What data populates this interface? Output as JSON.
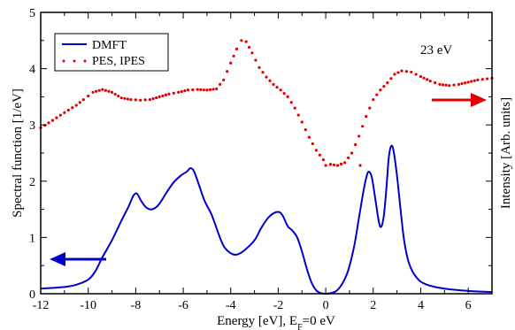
{
  "chart_data": {
    "type": "line",
    "xlabel_main": "Energy [eV], E",
    "xlabel_sub": "F",
    "xlabel_tail": "=0 eV",
    "ylabel_left": "Spectral function [1/eV]",
    "ylabel_right": "Intensity [Arb. units]",
    "annotation": "23 eV",
    "xlim": [
      -12,
      7
    ],
    "ylim": [
      0,
      5
    ],
    "x_ticks": [
      -12,
      -10,
      -8,
      -6,
      -4,
      -2,
      0,
      2,
      4,
      6
    ],
    "y_ticks": [
      0,
      1,
      2,
      3,
      4,
      5
    ],
    "x_tick_labels": [
      "-12",
      "-10",
      "-8",
      "-6",
      "-4",
      "-2",
      "0",
      "2",
      "4",
      "6"
    ],
    "y_tick_labels": [
      "0",
      "1",
      "2",
      "3",
      "4",
      "5"
    ],
    "grid": false,
    "legend_position": "top-left",
    "series": [
      {
        "name": "DMFT",
        "style": "line",
        "color": "#0000cc",
        "points": [
          [
            -12,
            0.09
          ],
          [
            -11,
            0.12
          ],
          [
            -10.5,
            0.16
          ],
          [
            -10,
            0.25
          ],
          [
            -9.7,
            0.4
          ],
          [
            -9.4,
            0.65
          ],
          [
            -9,
            0.95
          ],
          [
            -8.6,
            1.3
          ],
          [
            -8.3,
            1.55
          ],
          [
            -8.1,
            1.74
          ],
          [
            -7.95,
            1.78
          ],
          [
            -7.8,
            1.67
          ],
          [
            -7.6,
            1.55
          ],
          [
            -7.4,
            1.5
          ],
          [
            -7.2,
            1.52
          ],
          [
            -7.0,
            1.6
          ],
          [
            -6.7,
            1.8
          ],
          [
            -6.4,
            1.98
          ],
          [
            -6.1,
            2.1
          ],
          [
            -5.85,
            2.17
          ],
          [
            -5.7,
            2.23
          ],
          [
            -5.55,
            2.18
          ],
          [
            -5.35,
            1.95
          ],
          [
            -5.1,
            1.65
          ],
          [
            -4.8,
            1.4
          ],
          [
            -4.5,
            1.05
          ],
          [
            -4.3,
            0.85
          ],
          [
            -4.1,
            0.75
          ],
          [
            -3.9,
            0.7
          ],
          [
            -3.7,
            0.7
          ],
          [
            -3.4,
            0.78
          ],
          [
            -3.0,
            0.95
          ],
          [
            -2.7,
            1.18
          ],
          [
            -2.4,
            1.36
          ],
          [
            -2.15,
            1.44
          ],
          [
            -1.95,
            1.45
          ],
          [
            -1.8,
            1.38
          ],
          [
            -1.6,
            1.2
          ],
          [
            -1.4,
            1.12
          ],
          [
            -1.2,
            1.0
          ],
          [
            -1.0,
            0.75
          ],
          [
            -0.8,
            0.45
          ],
          [
            -0.6,
            0.2
          ],
          [
            -0.4,
            0.06
          ],
          [
            -0.2,
            0.01
          ],
          [
            0,
            0.0
          ],
          [
            0.2,
            0.01
          ],
          [
            0.45,
            0.05
          ],
          [
            0.7,
            0.18
          ],
          [
            0.95,
            0.42
          ],
          [
            1.2,
            0.85
          ],
          [
            1.4,
            1.35
          ],
          [
            1.6,
            1.85
          ],
          [
            1.75,
            2.13
          ],
          [
            1.85,
            2.16
          ],
          [
            1.95,
            2.05
          ],
          [
            2.1,
            1.65
          ],
          [
            2.25,
            1.25
          ],
          [
            2.35,
            1.2
          ],
          [
            2.45,
            1.4
          ],
          [
            2.55,
            1.85
          ],
          [
            2.65,
            2.4
          ],
          [
            2.75,
            2.62
          ],
          [
            2.85,
            2.55
          ],
          [
            3.0,
            2.1
          ],
          [
            3.15,
            1.5
          ],
          [
            3.3,
            0.95
          ],
          [
            3.5,
            0.55
          ],
          [
            3.8,
            0.3
          ],
          [
            4.2,
            0.17
          ],
          [
            5.0,
            0.09
          ],
          [
            6.0,
            0.05
          ],
          [
            7.0,
            0.03
          ]
        ]
      },
      {
        "name": "PES, IPES",
        "style": "dots",
        "color": "#e00000",
        "points": [
          [
            -12,
            2.95
          ],
          [
            -11.5,
            3.08
          ],
          [
            -11,
            3.22
          ],
          [
            -10.5,
            3.35
          ],
          [
            -10.2,
            3.45
          ],
          [
            -9.8,
            3.58
          ],
          [
            -9.4,
            3.63
          ],
          [
            -9.0,
            3.58
          ],
          [
            -8.6,
            3.48
          ],
          [
            -8.2,
            3.45
          ],
          [
            -7.8,
            3.44
          ],
          [
            -7.4,
            3.45
          ],
          [
            -7.0,
            3.5
          ],
          [
            -6.6,
            3.55
          ],
          [
            -6.2,
            3.58
          ],
          [
            -5.8,
            3.62
          ],
          [
            -5.4,
            3.63
          ],
          [
            -5.0,
            3.62
          ],
          [
            -4.6,
            3.64
          ],
          [
            -4.3,
            3.8
          ],
          [
            -4.0,
            4.1
          ],
          [
            -3.75,
            4.35
          ],
          [
            -3.55,
            4.5
          ],
          [
            -3.35,
            4.48
          ],
          [
            -3.1,
            4.28
          ],
          [
            -2.8,
            4.02
          ],
          [
            -2.5,
            3.85
          ],
          [
            -2.2,
            3.72
          ],
          [
            -1.9,
            3.62
          ],
          [
            -1.6,
            3.5
          ],
          [
            -1.3,
            3.3
          ],
          [
            -1.0,
            3.05
          ],
          [
            -0.7,
            2.78
          ],
          [
            -0.4,
            2.55
          ],
          [
            -0.1,
            2.38
          ],
          [
            0.0,
            2.28
          ],
          [
            0.2,
            2.3
          ],
          [
            0.5,
            2.28
          ],
          [
            0.8,
            2.33
          ],
          [
            1.1,
            2.5
          ],
          [
            1.4,
            2.8
          ],
          [
            1.7,
            3.15
          ],
          [
            2.0,
            3.45
          ],
          [
            2.3,
            3.62
          ],
          [
            2.6,
            3.75
          ],
          [
            2.9,
            3.9
          ],
          [
            3.2,
            3.96
          ],
          [
            3.6,
            3.94
          ],
          [
            4.0,
            3.86
          ],
          [
            4.4,
            3.78
          ],
          [
            4.8,
            3.72
          ],
          [
            5.2,
            3.7
          ],
          [
            5.6,
            3.72
          ],
          [
            6.0,
            3.76
          ],
          [
            6.4,
            3.8
          ],
          [
            6.8,
            3.82
          ],
          [
            7.0,
            3.83
          ]
        ],
        "outliers": [
          [
            1.45,
            2.28
          ]
        ]
      }
    ]
  }
}
